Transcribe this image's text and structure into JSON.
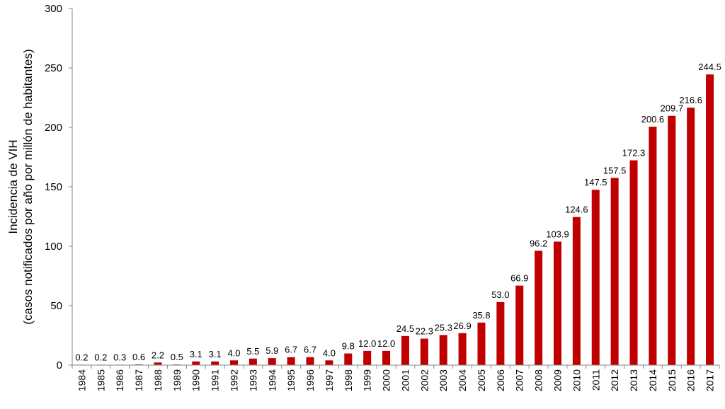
{
  "chart_data": {
    "type": "bar",
    "title": "",
    "xlabel": "",
    "ylabel_lines": [
      "Incidencia de VIH",
      "(casos notificados por año por millón de habitantes)"
    ],
    "ylim": [
      0,
      300
    ],
    "yticks": [
      0,
      50,
      100,
      150,
      200,
      250,
      300
    ],
    "grid": false,
    "legend": "none",
    "bar_color": "#C00000",
    "categories": [
      "1984",
      "1985",
      "1986",
      "1987",
      "1988",
      "1989",
      "1990",
      "1991",
      "1992",
      "1993",
      "1994",
      "1995",
      "1996",
      "1997",
      "1998",
      "1999",
      "2000",
      "2001",
      "2002",
      "2003",
      "2004",
      "2005",
      "2006",
      "2007",
      "2008",
      "2009",
      "2010",
      "2011",
      "2012",
      "2013",
      "2014",
      "2015",
      "2016",
      "2017"
    ],
    "values": [
      0.2,
      0.2,
      0.3,
      0.6,
      2.2,
      0.5,
      3.1,
      3.1,
      4.0,
      5.5,
      5.9,
      6.7,
      6.7,
      4.0,
      9.8,
      12.0,
      12.0,
      24.5,
      22.3,
      25.3,
      26.9,
      35.8,
      53.0,
      66.9,
      96.2,
      103.9,
      124.6,
      147.5,
      157.5,
      172.3,
      200.6,
      209.7,
      216.6,
      244.5
    ],
    "value_labels": [
      "0.2",
      "0.2",
      "0.3",
      "0.6",
      "2.2",
      "0.5",
      "3.1",
      "3.1",
      "4.0",
      "5.5",
      "5.9",
      "6.7",
      "6.7",
      "4.0",
      "9.8",
      "12.0",
      "12.0",
      "24.5",
      "22.3",
      "25.3",
      "26.9",
      "35.8",
      "53.0",
      "66.9",
      "96.2",
      "103.9",
      "124.6",
      "147.5",
      "157.5",
      "172.3",
      "200.6",
      "209.7",
      "216.6",
      "244.5"
    ]
  }
}
